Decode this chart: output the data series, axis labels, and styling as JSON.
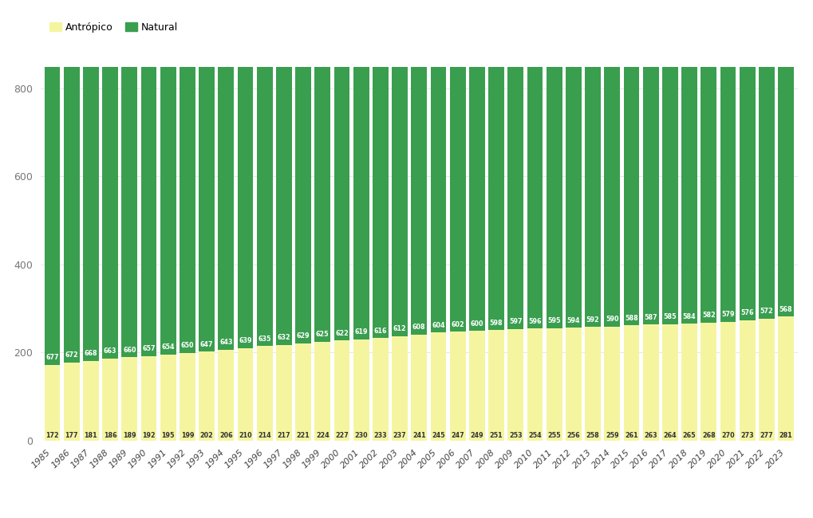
{
  "years": [
    1985,
    1986,
    1987,
    1988,
    1989,
    1990,
    1991,
    1992,
    1993,
    1994,
    1995,
    1996,
    1997,
    1998,
    1999,
    2000,
    2001,
    2002,
    2003,
    2004,
    2005,
    2006,
    2007,
    2008,
    2009,
    2010,
    2011,
    2012,
    2013,
    2014,
    2015,
    2016,
    2017,
    2018,
    2019,
    2020,
    2021,
    2022,
    2023
  ],
  "antropico": [
    172,
    177,
    181,
    186,
    189,
    192,
    195,
    199,
    202,
    206,
    210,
    214,
    217,
    221,
    224,
    227,
    230,
    233,
    237,
    241,
    245,
    247,
    249,
    251,
    253,
    254,
    255,
    256,
    258,
    259,
    261,
    263,
    264,
    265,
    268,
    270,
    273,
    277,
    281
  ],
  "natural": [
    677,
    672,
    668,
    663,
    660,
    657,
    654,
    650,
    647,
    643,
    639,
    635,
    632,
    629,
    625,
    622,
    619,
    616,
    612,
    608,
    604,
    602,
    600,
    598,
    597,
    596,
    595,
    594,
    592,
    590,
    588,
    587,
    585,
    584,
    582,
    579,
    576,
    572,
    568
  ],
  "color_antropico": "#f5f5a0",
  "color_natural": "#3a9e4f",
  "background_color": "#ffffff",
  "ylabel_color": "#777777",
  "label_color_natural": "#ffffff",
  "label_color_antropico": "#333333",
  "legend_label_antropico": "Antrópico",
  "legend_label_natural": "Natural",
  "ylim": [
    0,
    860
  ],
  "yticks": [
    0,
    200,
    400,
    600,
    800
  ]
}
